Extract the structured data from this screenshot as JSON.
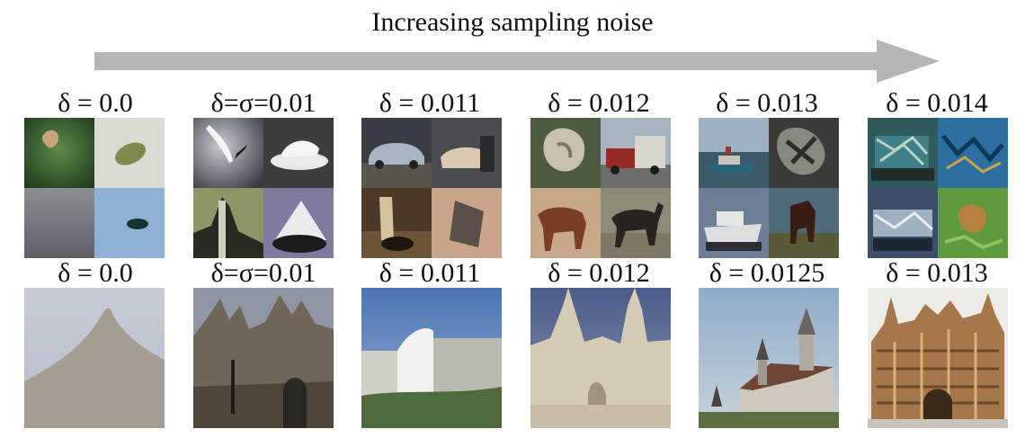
{
  "title": "Increasing sampling noise",
  "colors": {
    "arrow": "#b5b5b5"
  },
  "top_row": {
    "labels": [
      "δ = 0.0",
      "δ=σ=0.01",
      "δ = 0.011",
      "δ = 0.012",
      "δ = 0.013",
      "δ = 0.014"
    ]
  },
  "bottom_row": {
    "labels": [
      "δ = 0.0",
      "δ=σ=0.01",
      "δ = 0.011",
      "δ = 0.012",
      "δ = 0.0125",
      "δ = 0.013"
    ]
  }
}
